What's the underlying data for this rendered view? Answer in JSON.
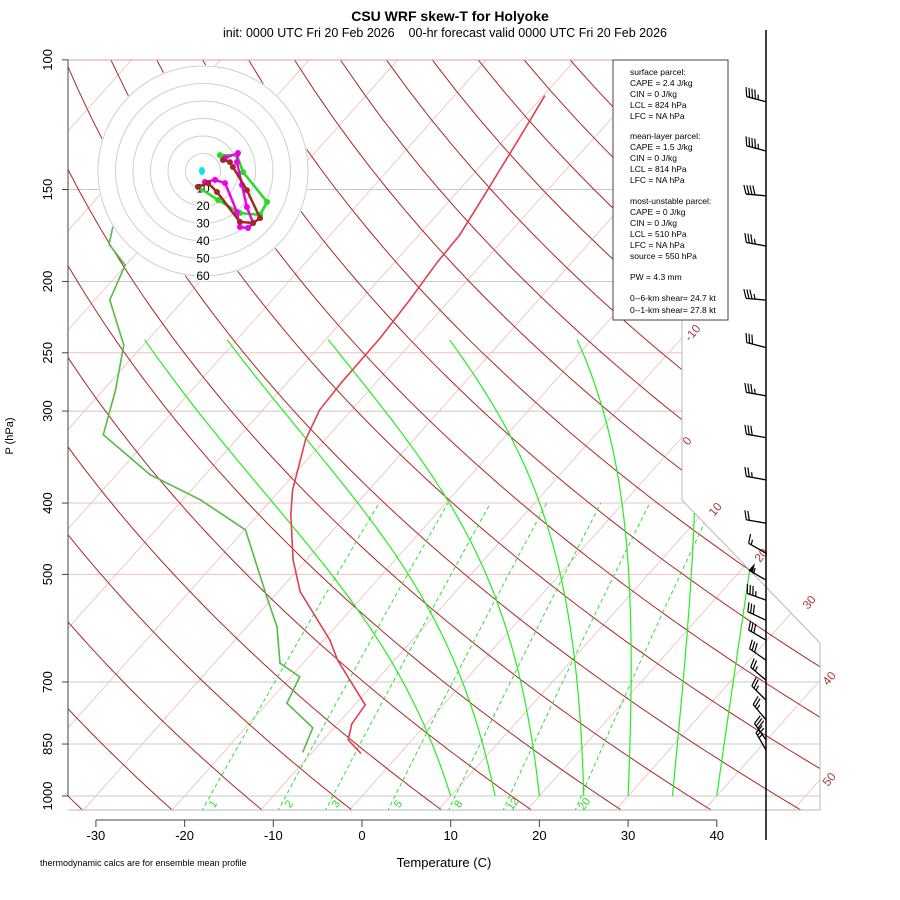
{
  "chart_data": {
    "type": "line",
    "title": "CSU WRF skew-T for Holyoke",
    "subtitle": "init: 0000 UTC Fri 20 Feb 2026    00-hr forecast valid 0000 UTC Fri 20 Feb 2026",
    "xlabel": "Temperature (C)",
    "ylabel": "P (hPa)",
    "footnote": "thermodynamic calcs are for ensemble mean profile",
    "x_ticks": [
      -30,
      -20,
      -10,
      0,
      10,
      20,
      30,
      40
    ],
    "y_ticks": [
      100,
      150,
      200,
      250,
      300,
      400,
      500,
      700,
      850,
      1000
    ],
    "xlim": [
      -33,
      52
    ],
    "ylim": [
      1050,
      100
    ],
    "isotherm_labels": [
      "-10",
      "0",
      "10",
      "20",
      "30",
      "40",
      "50"
    ],
    "mixing_ratio_labels": [
      "1",
      "2",
      "3",
      "5",
      "8",
      "12",
      "20"
    ],
    "mixing_ratios_gkg": [
      1,
      2,
      3,
      5,
      8,
      12,
      20
    ],
    "moist_adiabats_c": [
      10,
      15,
      20,
      25,
      30,
      35,
      40
    ],
    "dry_adiabats_k": [
      240,
      250,
      260,
      270,
      280,
      290,
      300,
      310,
      320,
      330,
      340,
      350,
      360,
      370,
      380,
      390,
      400,
      410,
      420,
      430,
      440,
      450,
      460
    ],
    "series": [
      {
        "name": "temperature",
        "color": "#e0404f",
        "p": [
          874,
          839,
          798,
          752,
          654,
          614,
          528,
          478,
          415,
          384,
          328,
          299,
          274,
          239,
          212,
          188,
          173,
          153,
          128,
          112
        ],
        "t": [
          -4.5,
          -7.2,
          -8.4,
          -8.8,
          -16.4,
          -19.3,
          -27.5,
          -31.5,
          -36.3,
          -38.6,
          -42.2,
          -43.6,
          -43.9,
          -44.0,
          -44.5,
          -45.2,
          -45.4,
          -46.6,
          -48.4,
          -49.8
        ]
      },
      {
        "name": "dewpoint",
        "color": "#55bb44",
        "p": [
          871,
          808,
          748,
          689,
          660,
          589,
          542,
          435,
          396,
          366,
          323,
          281,
          244,
          212,
          190,
          178,
          162,
          146
        ],
        "t": [
          -11.1,
          -12.4,
          -17.8,
          -19.0,
          -22.6,
          -26.6,
          -30.3,
          -39.9,
          -48.0,
          -56.2,
          -65.5,
          -68.6,
          -72.2,
          -78.3,
          -80.1,
          -84.0,
          -86.3,
          -90.9
        ]
      }
    ],
    "wind_barbs": {
      "p": [
        114,
        133,
        153,
        179,
        212,
        246,
        286,
        326,
        372,
        426,
        468,
        509,
        542,
        577,
        614,
        654,
        696,
        741,
        788,
        839,
        866
      ],
      "speed_kt": [
        45,
        45,
        40,
        35,
        35,
        30,
        35,
        30,
        25,
        20,
        15,
        55,
        35,
        30,
        30,
        30,
        25,
        25,
        25,
        30,
        25
      ],
      "direction_deg": [
        285,
        285,
        275,
        280,
        275,
        285,
        280,
        280,
        280,
        280,
        300,
        300,
        290,
        295,
        300,
        305,
        310,
        315,
        320,
        325,
        330
      ]
    },
    "hodograph": {
      "ring_labels": [
        "10",
        "20",
        "30",
        "40",
        "50",
        "60"
      ],
      "rings_kt": [
        10,
        20,
        30,
        40,
        50,
        60
      ],
      "storm_motion": {
        "u": -0.6,
        "v": 0,
        "color": "#00e5ee"
      },
      "traces": [
        {
          "name": "green",
          "color": "#22dd22",
          "u": [
            -2.9,
            8.6,
            21.1,
            32.6,
            36.6,
            22.9,
            19.4,
            9.7
          ],
          "v": [
            -9.1,
            -16.6,
            -24.0,
            -25.1,
            -17.7,
            -0.6,
            9.1,
            9.1
          ]
        },
        {
          "name": "magenta",
          "color": "#ee00ee",
          "u": [
            1.1,
            6.9,
            12.6,
            19.4,
            21.1,
            25.7,
            28.6,
            25.1,
            22.3,
            19.4,
            20.0,
            12.6
          ],
          "v": [
            -6.3,
            -5.1,
            -6.9,
            -23.4,
            -32.0,
            -32.6,
            -29.7,
            -20.6,
            -8.0,
            5.1,
            10.3,
            7.4
          ]
        },
        {
          "name": "brown",
          "color": "#a02828",
          "u": [
            -2.9,
            2.9,
            8.0,
            21.1,
            28.6,
            32.6,
            25.1,
            17.1,
            15.4,
            11.4
          ],
          "v": [
            -9.1,
            -6.9,
            -12.0,
            -29.1,
            -29.7,
            -26.9,
            -10.9,
            2.3,
            5.1,
            6.3
          ]
        }
      ]
    },
    "legend": "top-right"
  },
  "info_box": {
    "lines": [
      "surface parcel:",
      "CAPE = 2.4 J/kg",
      "CIN = 0 J/kg",
      "LCL = 824 hPa",
      "LFC = NA hPa",
      "mean-layer parcel:",
      "CAPE = 1.5 J/kg",
      "CIN = 0 J/kg",
      "LCL = 814 hPa",
      "LFC = NA hPa",
      "most-unstable parcel:",
      "CAPE = 0 J/kg",
      "CIN = 0 J/kg",
      "LCL = 510 hPa",
      "LFC = NA hPa",
      "source = 550 hPa",
      "PW =  4.3 mm",
      "0--6-km shear= 24.7 kt",
      "0--1-km shear= 27.8 kt"
    ]
  }
}
